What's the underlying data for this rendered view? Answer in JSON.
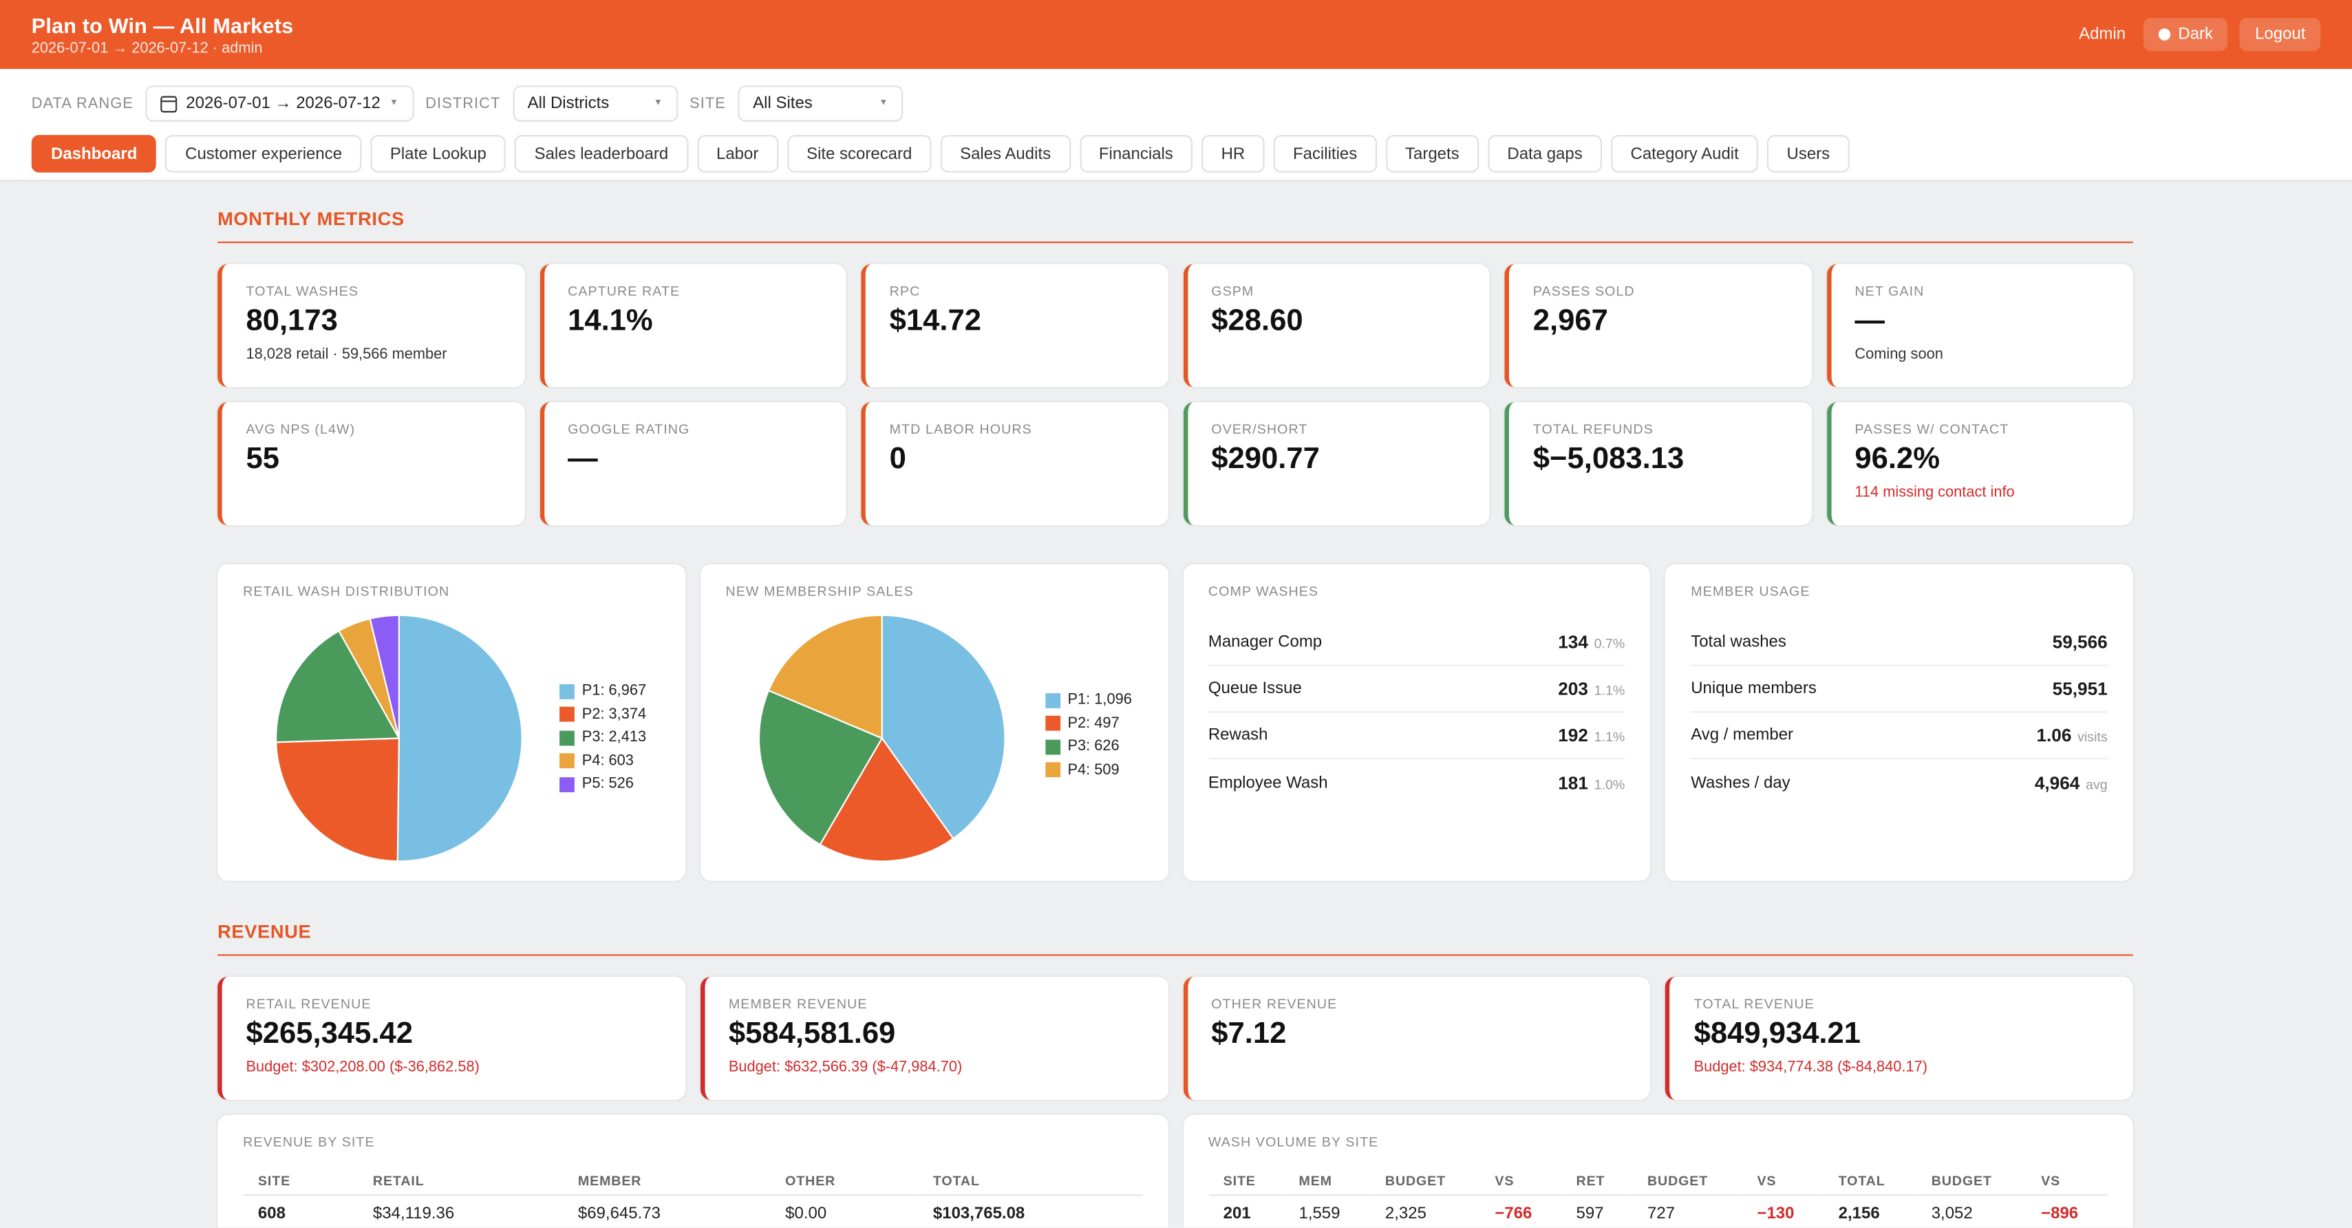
{
  "header": {
    "title": "Plan to Win — All Markets",
    "subtitle": "2026-07-01 → 2026-07-12 · admin",
    "user": "Admin",
    "dark_label": "Dark",
    "logout_label": "Logout"
  },
  "filters": {
    "range_label": "DATA RANGE",
    "range_value": "2026-07-01 → 2026-07-12",
    "district_label": "DISTRICT",
    "district_value": "All Districts",
    "site_label": "SITE",
    "site_value": "All Sites"
  },
  "tabs": [
    "Dashboard",
    "Customer experience",
    "Plate Lookup",
    "Sales leaderboard",
    "Labor",
    "Site scorecard",
    "Sales Audits",
    "Financials",
    "HR",
    "Facilities",
    "Targets",
    "Data gaps",
    "Category Audit",
    "Users"
  ],
  "monthly": {
    "title": "MONTHLY METRICS",
    "kpis": [
      {
        "label": "TOTAL WASHES",
        "value": "80,173",
        "sub": "18,028 retail · 59,566 member"
      },
      {
        "label": "CAPTURE RATE",
        "value": "14.1%",
        "sub": ""
      },
      {
        "label": "RPC",
        "value": "$14.72",
        "sub": ""
      },
      {
        "label": "GSPM",
        "value": "$28.60",
        "sub": ""
      },
      {
        "label": "PASSES SOLD",
        "value": "2,967",
        "sub": ""
      },
      {
        "label": "NET GAIN",
        "value": "—",
        "sub": "Coming soon"
      },
      {
        "label": "AVG NPS (L4W)",
        "value": "55",
        "sub": ""
      },
      {
        "label": "GOOGLE RATING",
        "value": "—",
        "sub": ""
      },
      {
        "label": "MTD LABOR HOURS",
        "value": "0",
        "sub": ""
      },
      {
        "label": "OVER/SHORT",
        "value": "$290.77",
        "sub": ""
      },
      {
        "label": "TOTAL REFUNDS",
        "value": "$−5,083.13",
        "sub": ""
      },
      {
        "label": "PASSES W/ CONTACT",
        "value": "96.2%",
        "sub": "114 missing contact info"
      }
    ]
  },
  "colors": {
    "p1": "#78bfe3",
    "p2": "#ec5a29",
    "p3": "#4a9a5c",
    "p4": "#e9a53c",
    "p5": "#8b5cf6"
  },
  "chart_data": [
    {
      "type": "pie",
      "title": "RETAIL WASH DISTRIBUTION",
      "categories": [
        "P1",
        "P2",
        "P3",
        "P4",
        "P5"
      ],
      "values": [
        6967,
        3374,
        2413,
        603,
        526
      ],
      "legend": [
        "P1: 6,967",
        "P2: 3,374",
        "P3: 2,413",
        "P4: 603",
        "P5: 526"
      ]
    },
    {
      "type": "pie",
      "title": "NEW MEMBERSHIP SALES",
      "categories": [
        "P1",
        "P2",
        "P3",
        "P4"
      ],
      "values": [
        1096,
        497,
        626,
        509
      ],
      "legend": [
        "P1: 1,096",
        "P2: 497",
        "P3: 626",
        "P4: 509"
      ]
    }
  ],
  "comp": {
    "title": "COMP WASHES",
    "rows": [
      {
        "label": "Manager Comp",
        "value": "134",
        "pct": "0.7%"
      },
      {
        "label": "Queue Issue",
        "value": "203",
        "pct": "1.1%"
      },
      {
        "label": "Rewash",
        "value": "192",
        "pct": "1.1%"
      },
      {
        "label": "Employee Wash",
        "value": "181",
        "pct": "1.0%"
      }
    ]
  },
  "usage": {
    "title": "MEMBER USAGE",
    "rows": [
      {
        "label": "Total washes",
        "value": "59,566",
        "unit": ""
      },
      {
        "label": "Unique members",
        "value": "55,951",
        "unit": ""
      },
      {
        "label": "Avg / member",
        "value": "1.06",
        "unit": "visits"
      },
      {
        "label": "Washes / day",
        "value": "4,964",
        "unit": "avg"
      }
    ]
  },
  "revenue": {
    "title": "REVENUE",
    "kpis": [
      {
        "label": "RETAIL REVENUE",
        "value": "$265,345.42",
        "sub": "Budget: $302,208.00 ($-36,862.58)"
      },
      {
        "label": "MEMBER REVENUE",
        "value": "$584,581.69",
        "sub": "Budget: $632,566.39 ($-47,984.70)"
      },
      {
        "label": "OTHER REVENUE",
        "value": "$7.12",
        "sub": ""
      },
      {
        "label": "TOTAL REVENUE",
        "value": "$849,934.21",
        "sub": "Budget: $934,774.38 ($-84,840.17)"
      }
    ]
  },
  "rev_by_site": {
    "title": "REVENUE BY SITE",
    "headers": [
      "SITE",
      "RETAIL",
      "MEMBER",
      "OTHER",
      "TOTAL"
    ],
    "rows": [
      [
        "608",
        "$34,119.36",
        "$69,645.73",
        "$0.00",
        "$103,765.08"
      ]
    ]
  },
  "wash_by_site": {
    "title": "WASH VOLUME BY SITE",
    "headers": [
      "SITE",
      "MEM",
      "BUDGET",
      "VS",
      "RET",
      "BUDGET",
      "VS",
      "TOTAL",
      "BUDGET",
      "VS"
    ],
    "rows": [
      [
        "201",
        "1,559",
        "2,325",
        "−766",
        "597",
        "727",
        "−130",
        "2,156",
        "3,052",
        "−896"
      ]
    ]
  }
}
